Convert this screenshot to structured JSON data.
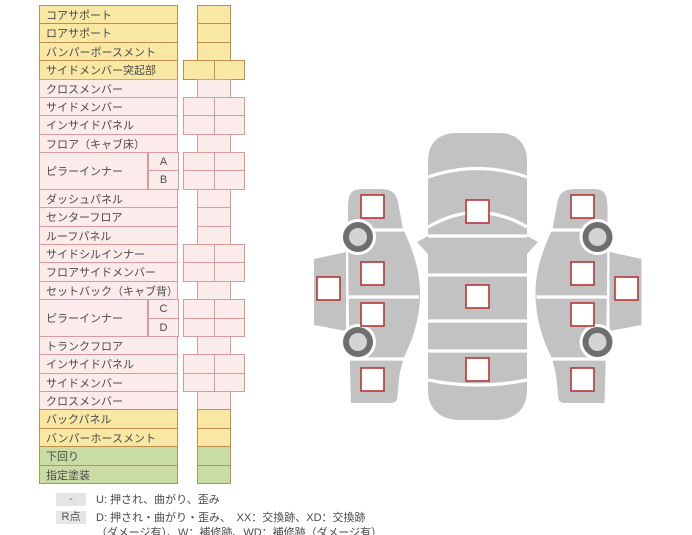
{
  "table": {
    "rows": [
      {
        "label": "コアサポート",
        "color": "yellow",
        "cells": 1
      },
      {
        "label": "ロアサポート",
        "color": "yellow",
        "cells": 1
      },
      {
        "label": "バンパーポースメント",
        "color": "yellow",
        "cells": 1
      },
      {
        "label": "サイドメンバー突起部",
        "color": "yellow",
        "cells": 2
      },
      {
        "label": "クロスメンバー",
        "color": "pink",
        "cells": 1
      },
      {
        "label": "サイドメンバー",
        "color": "pink",
        "cells": 2
      },
      {
        "label": "インサイドパネル",
        "color": "pink",
        "cells": 2
      },
      {
        "label": "フロア（キャブ床）",
        "color": "pink",
        "cells": 1
      },
      {
        "label": "ピラーインナー",
        "sub": "A",
        "color": "pink",
        "cells": 2,
        "group": "start"
      },
      {
        "label": "",
        "sub": "B",
        "color": "pink",
        "cells": 2,
        "group": "cont"
      },
      {
        "label": "ダッシュパネル",
        "color": "pink",
        "cells": 1
      },
      {
        "label": "センターフロア",
        "color": "pink",
        "cells": 1
      },
      {
        "label": "ルーフパネル",
        "color": "pink",
        "cells": 1
      },
      {
        "label": "サイドシルインナー",
        "color": "pink",
        "cells": 2
      },
      {
        "label": "フロアサイドメンバー",
        "color": "pink",
        "cells": 2
      },
      {
        "label": "セットバック（キャブ背）",
        "color": "pink",
        "cells": 1
      },
      {
        "label": "ピラーインナー",
        "sub": "C",
        "color": "pink",
        "cells": 2,
        "group": "start"
      },
      {
        "label": "",
        "sub": "D",
        "color": "pink",
        "cells": 2,
        "group": "cont"
      },
      {
        "label": "トランクフロア",
        "color": "pink",
        "cells": 1
      },
      {
        "label": "インサイドパネル",
        "color": "pink",
        "cells": 2
      },
      {
        "label": "サイドメンバー",
        "color": "pink",
        "cells": 2
      },
      {
        "label": "クロスメンバー",
        "color": "pink",
        "cells": 1
      },
      {
        "label": "バックパネル",
        "color": "yellow",
        "cells": 1
      },
      {
        "label": "バンパーホースメント",
        "color": "yellow",
        "cells": 1
      },
      {
        "label": "下回り",
        "color": "green",
        "cells": 1
      },
      {
        "label": "指定塗装",
        "color": "green",
        "cells": 1
      }
    ]
  },
  "legend": {
    "items": [
      {
        "symbol": "-",
        "lines": [
          "U: 押され、曲がり、歪み"
        ]
      },
      {
        "symbol": "R点",
        "lines": [
          "D: 押され・曲がり・歪み、　XX：交換跡、XD：交換跡",
          "（ダメージ有）、W：補修跡、WD：補修跡（ダメージ有）"
        ]
      }
    ]
  },
  "diagram": {
    "views": [
      "left-side-view",
      "top-view",
      "right-side-view"
    ],
    "left_marker_count": 5,
    "top_marker_count": 3,
    "right_marker_count": 5
  },
  "colors": {
    "yellow": {
      "bg": "#f9e7a4",
      "border": "#bf8f4c"
    },
    "pink": {
      "bg": "#fcebeb",
      "border": "#d89b9b"
    },
    "green": {
      "bg": "#c9dca6",
      "border": "#bf8f4c"
    },
    "text": "#4a4a4a",
    "badge_bg": "#e5e5e5",
    "car_body": "#c2c2c2",
    "wheel_ring": "#6f6f6f",
    "wheel_hub": "#d4d4d4",
    "marker_border": "#b63535"
  }
}
